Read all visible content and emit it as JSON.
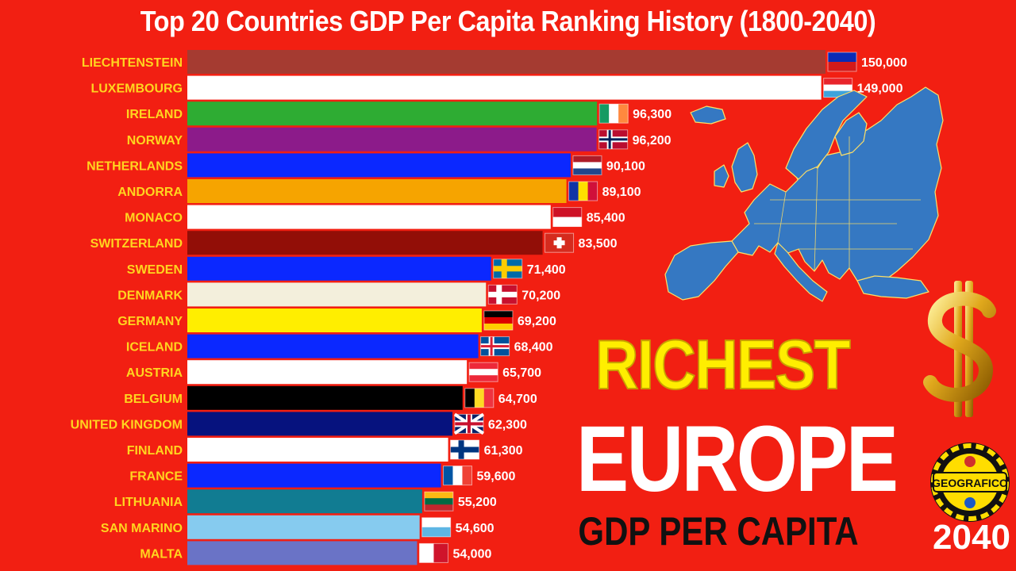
{
  "chart_data": {
    "type": "bar",
    "orientation": "horizontal",
    "title": "Top 20 Countries GDP Per Capita Ranking History (1800-2040)",
    "categories": [
      "LIECHTENSTEIN",
      "LUXEMBOURG",
      "IRELAND",
      "NORWAY",
      "NETHERLANDS",
      "ANDORRA",
      "MONACO",
      "SWITZERLAND",
      "SWEDEN",
      "DENMARK",
      "GERMANY",
      "ICELAND",
      "AUSTRIA",
      "BELGIUM",
      "UNITED KINGDOM",
      "FINLAND",
      "FRANCE",
      "LITHUANIA",
      "SAN MARINO",
      "MALTA"
    ],
    "values": [
      150000,
      149000,
      96300,
      96200,
      90100,
      89100,
      85400,
      83500,
      71400,
      70200,
      69200,
      68400,
      65700,
      64700,
      62300,
      61300,
      59600,
      55200,
      54600,
      54000
    ],
    "value_labels": [
      "150,000",
      "149,000",
      "96,300",
      "96,200",
      "90,100",
      "89,100",
      "85,400",
      "83,500",
      "71,400",
      "70,200",
      "69,200",
      "68,400",
      "65,700",
      "64,700",
      "62,300",
      "61,300",
      "59,600",
      "55,200",
      "54,600",
      "54,000"
    ],
    "bar_colors": [
      "#a53b31",
      "#ffffff",
      "#2eac33",
      "#8c1b8a",
      "#0b28ff",
      "#f6a400",
      "#ffffff",
      "#920e07",
      "#0b28ff",
      "#f3efdc",
      "#ffee00",
      "#0b28ff",
      "#ffffff",
      "#000000",
      "#06127e",
      "#ffffff",
      "#0b28ff",
      "#117c92",
      "#86cbef",
      "#6a73c6"
    ],
    "flags": [
      {
        "country": "LIECHTENSTEIN",
        "type": "h",
        "colors": [
          "#0b2bb5",
          "#d41a1a"
        ]
      },
      {
        "country": "LUXEMBOURG",
        "type": "h",
        "colors": [
          "#e8242b",
          "#ffffff",
          "#3ea3dc"
        ]
      },
      {
        "country": "IRELAND",
        "type": "v",
        "colors": [
          "#169b62",
          "#ffffff",
          "#ff883e"
        ]
      },
      {
        "country": "NORWAY",
        "type": "nordic",
        "colors": [
          "#ba0c2f",
          "#ffffff",
          "#00205b"
        ]
      },
      {
        "country": "NETHERLANDS",
        "type": "h",
        "colors": [
          "#ae1c28",
          "#ffffff",
          "#21468b"
        ]
      },
      {
        "country": "ANDORRA",
        "type": "v",
        "colors": [
          "#1034a6",
          "#fedf00",
          "#d0103a"
        ]
      },
      {
        "country": "MONACO",
        "type": "h",
        "colors": [
          "#ce1126",
          "#ffffff"
        ]
      },
      {
        "country": "SWITZERLAND",
        "type": "swiss",
        "colors": [
          "#d52b1e",
          "#ffffff"
        ]
      },
      {
        "country": "SWEDEN",
        "type": "nordic",
        "colors": [
          "#006aa7",
          "#fecc00",
          "#fecc00"
        ]
      },
      {
        "country": "DENMARK",
        "type": "nordic",
        "colors": [
          "#c8102e",
          "#ffffff",
          "#ffffff"
        ]
      },
      {
        "country": "GERMANY",
        "type": "h",
        "colors": [
          "#000000",
          "#dd0000",
          "#ffce00"
        ]
      },
      {
        "country": "ICELAND",
        "type": "nordic",
        "colors": [
          "#02529c",
          "#ffffff",
          "#dc1e35"
        ]
      },
      {
        "country": "AUSTRIA",
        "type": "h",
        "colors": [
          "#ed2939",
          "#ffffff",
          "#ed2939"
        ]
      },
      {
        "country": "BELGIUM",
        "type": "v",
        "colors": [
          "#000000",
          "#fdda24",
          "#ef3340"
        ]
      },
      {
        "country": "UNITED KINGDOM",
        "type": "uk",
        "colors": [
          "#012169",
          "#ffffff",
          "#c8102e"
        ]
      },
      {
        "country": "FINLAND",
        "type": "nordic",
        "colors": [
          "#ffffff",
          "#003580",
          "#003580"
        ]
      },
      {
        "country": "FRANCE",
        "type": "v",
        "colors": [
          "#0055a4",
          "#ffffff",
          "#ef4135"
        ]
      },
      {
        "country": "LITHUANIA",
        "type": "h",
        "colors": [
          "#fdb913",
          "#006a44",
          "#c1272d"
        ]
      },
      {
        "country": "SAN MARINO",
        "type": "h",
        "colors": [
          "#ffffff",
          "#5eb6e4"
        ]
      },
      {
        "country": "MALTA",
        "type": "v",
        "colors": [
          "#ffffff",
          "#cf142b"
        ]
      }
    ],
    "x_axis_visible": false,
    "grid": false,
    "legend": "none"
  },
  "overlay": {
    "line1": "RICHEST",
    "line2": "EUROPE",
    "line3": "GDP PER CAPITA",
    "year": "2040",
    "logo_text": "GEOGRAFICO"
  },
  "colors": {
    "background": "#f21f12",
    "category_label": "#ffd51f",
    "value_label": "#ffffff",
    "map_fill": "#3578c2",
    "map_border": "#ffe066",
    "overlay_richest": "#ffee00",
    "overlay_europe": "#ffffff",
    "overlay_gdp": "#111111",
    "dollar_gold": "#e0a81c"
  },
  "icons": [
    "europe-map",
    "gold-dollar-sign",
    "geografico-logo"
  ]
}
